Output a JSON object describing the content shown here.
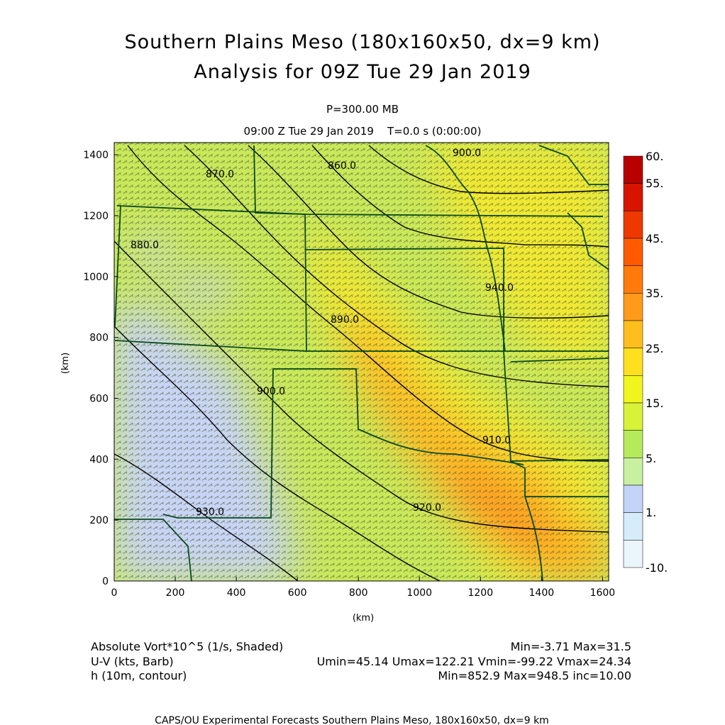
{
  "title": {
    "line1": "Southern Plains Meso (180x160x50, dx=9 km)",
    "line2": "Analysis for 09Z Tue 29 Jan 2019"
  },
  "subtitle": {
    "pressure": "P=300.00 MB",
    "time": "09:00 Z Tue 29 Jan 2019    T=0.0 s (0:00:00)"
  },
  "axes": {
    "xlabel": "(km)",
    "ylabel": "(km)",
    "xticks": [
      "0",
      "200",
      "400",
      "600",
      "800",
      "1000",
      "1200",
      "1400",
      "1600"
    ],
    "yticks": [
      "0",
      "200",
      "400",
      "600",
      "800",
      "1000",
      "1200",
      "1400"
    ],
    "xrange": [
      0,
      1620
    ],
    "yrange": [
      0,
      1440
    ]
  },
  "colorbar": {
    "labels": [
      "60.",
      "55.",
      "45.",
      "35.",
      "25.",
      "15.",
      "5.",
      "1.",
      "-10."
    ],
    "colors": [
      "#b80000",
      "#d81400",
      "#ee3800",
      "#ff5a00",
      "#ff7a0a",
      "#ff9a1a",
      "#ffbe1e",
      "#ffe01e",
      "#f0f51e",
      "#d8f23a",
      "#b5ea5a",
      "#c8f0a0",
      "#c4d4f8",
      "#d6ecfa",
      "#eaf6fc"
    ]
  },
  "contour_labels": [
    "860.0",
    "870.0",
    "880.0",
    "890.0",
    "900.0",
    "910.0",
    "920.0",
    "930.0",
    "940.0",
    "900.0"
  ],
  "footer": {
    "left1": "Absolute Vort*10^5 (1/s, Shaded)",
    "left2": "U-V (kts, Barb)",
    "left3": "h (10m, contour)",
    "right1": "Min=-3.71 Max=31.5",
    "right2": "Umin=45.14 Umax=122.21 Vmin=-99.22 Vmax=24.34",
    "right3": "Min=852.9 Max=948.5 inc=10.00",
    "credit": "CAPS/OU Experimental Forecasts  Southern Plains Meso, 180x160x50, dx=9 km"
  },
  "colors": {
    "map_base": "#c9e85a",
    "high_vort": "#ff9020",
    "low_vort": "#c8d4f4",
    "border": "#0a4a1a"
  }
}
